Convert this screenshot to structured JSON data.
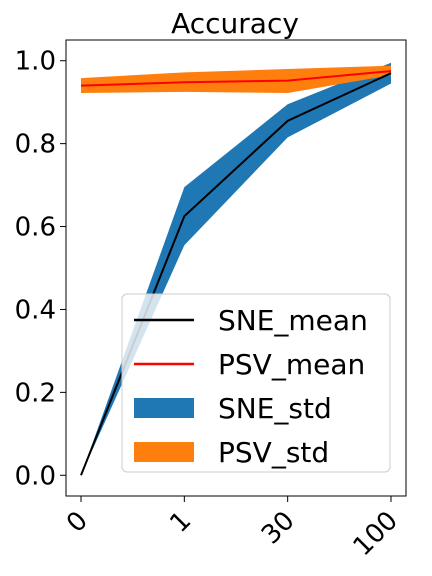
{
  "chart_data": {
    "type": "line",
    "title": "Accuracy",
    "xlabel": "",
    "ylabel": "",
    "categories": [
      "0",
      "1",
      "30",
      "100"
    ],
    "ylim": [
      -0.05,
      1.05
    ],
    "yticks": [
      "0.0",
      "0.2",
      "0.4",
      "0.6",
      "0.8",
      "1.0"
    ],
    "grid": false,
    "legend_position": "lower-right",
    "series": [
      {
        "name": "SNE_mean",
        "kind": "line",
        "color": "#000000",
        "values": [
          0.0,
          0.625,
          0.855,
          0.97
        ]
      },
      {
        "name": "PSV_mean",
        "kind": "line",
        "color": "#ff0000",
        "values": [
          0.94,
          0.948,
          0.952,
          0.975
        ]
      },
      {
        "name": "SNE_std",
        "kind": "band",
        "color": "#1f77b4",
        "lower": [
          0.0,
          0.555,
          0.815,
          0.945
        ],
        "upper": [
          0.0,
          0.695,
          0.895,
          0.995
        ]
      },
      {
        "name": "PSV_std",
        "kind": "band",
        "color": "#ff7f0e",
        "lower": [
          0.922,
          0.925,
          0.922,
          0.965
        ],
        "upper": [
          0.958,
          0.972,
          0.98,
          0.988
        ]
      }
    ]
  }
}
